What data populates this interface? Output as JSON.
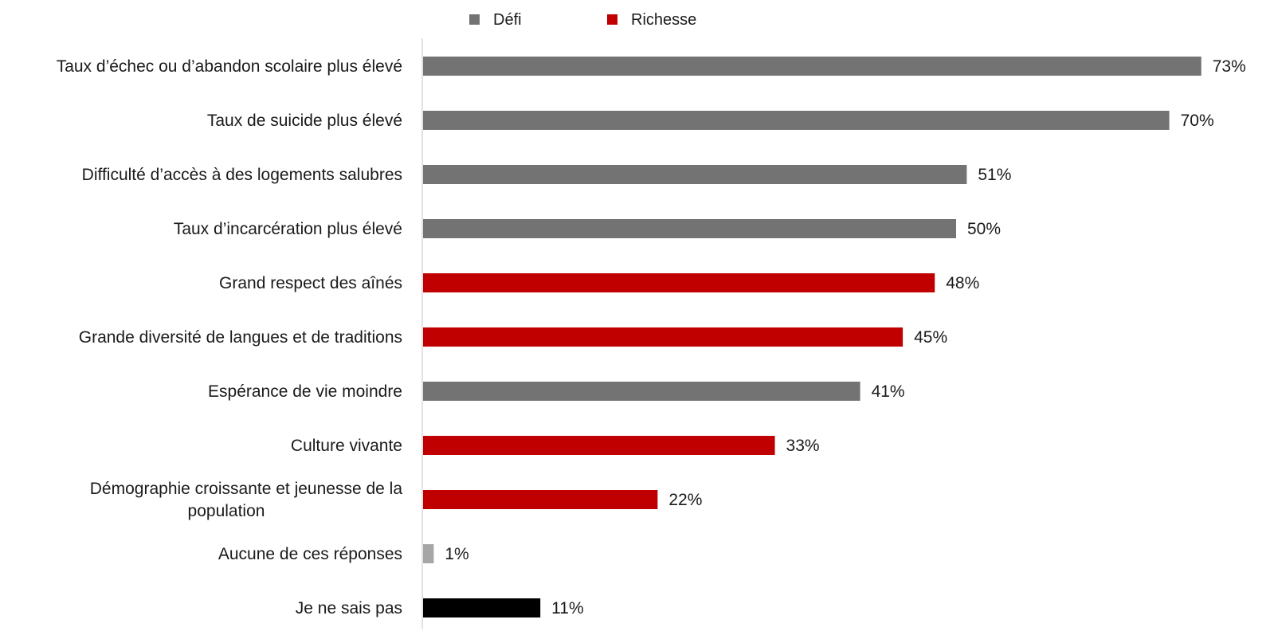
{
  "chart_data": {
    "type": "bar",
    "orientation": "horizontal",
    "legend": {
      "position": "top",
      "entries": [
        {
          "label": "Défi",
          "color": "#737373"
        },
        {
          "label": "Richesse",
          "color": "#c00000"
        }
      ]
    },
    "categories": [
      "Taux d’échec ou d’abandon scolaire plus élevé",
      "Taux de suicide plus élevé",
      "Difficulté d’accès à des logements salubres",
      "Taux d’incarcération plus élevé",
      "Grand respect des aînés",
      "Grande diversité de langues et de traditions",
      "Espérance de vie moindre",
      "Culture vivante",
      "Démographie croissante et jeunesse de la population",
      "Aucune de ces réponses",
      "Je ne sais pas"
    ],
    "values": [
      73,
      70,
      51,
      50,
      48,
      45,
      41,
      33,
      22,
      1,
      11
    ],
    "value_labels": [
      "73%",
      "70%",
      "51%",
      "50%",
      "48%",
      "45%",
      "41%",
      "33%",
      "22%",
      "1%",
      "11%"
    ],
    "bar_groups": [
      "Défi",
      "Défi",
      "Défi",
      "Défi",
      "Richesse",
      "Richesse",
      "Défi",
      "Richesse",
      "Richesse",
      "other",
      "other"
    ],
    "bar_colors": [
      "#737373",
      "#737373",
      "#737373",
      "#737373",
      "#c00000",
      "#c00000",
      "#737373",
      "#c00000",
      "#c00000",
      "#a6a6a6",
      "#000000"
    ],
    "xlim": [
      0,
      73
    ],
    "grid": false,
    "title": "",
    "xlabel": "",
    "ylabel": ""
  }
}
